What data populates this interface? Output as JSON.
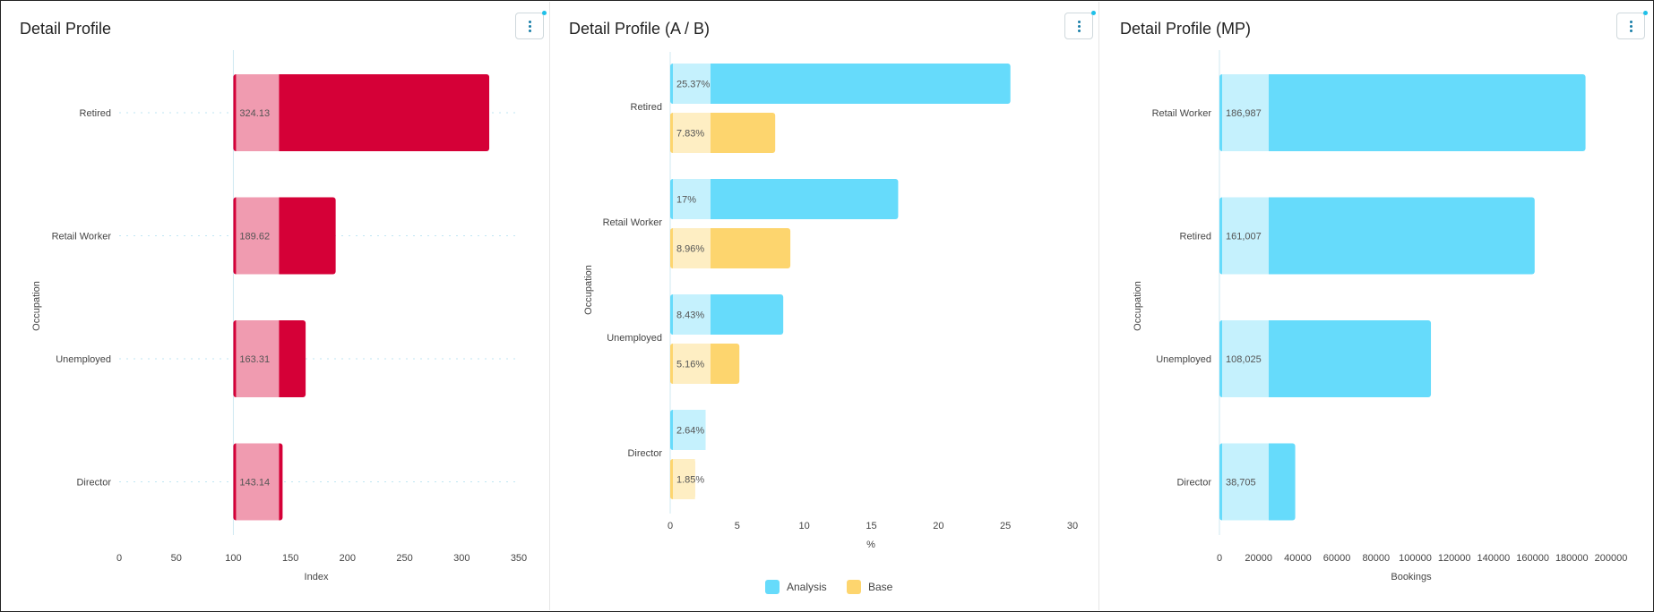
{
  "panels": [
    {
      "title": "Detail Profile"
    },
    {
      "title": "Detail Profile (A / B)"
    },
    {
      "title": "Detail Profile (MP)"
    }
  ],
  "chart_data": [
    {
      "type": "bar",
      "orientation": "horizontal",
      "title": "Detail Profile",
      "ylabel": "Occupation",
      "xlabel": "Index",
      "categories": [
        "Retired",
        "Retail Worker",
        "Unemployed",
        "Director"
      ],
      "values": [
        324.13,
        189.62,
        163.31,
        143.14
      ],
      "value_labels": [
        "324.13",
        "189.62",
        "163.31",
        "143.14"
      ],
      "baseline": 100,
      "xlim": [
        0,
        350
      ],
      "xticks": [
        "0",
        "50",
        "100",
        "150",
        "200",
        "250",
        "300",
        "350"
      ],
      "colors": {
        "bar": "#d50037",
        "bar_light": "#f09bb0"
      }
    },
    {
      "type": "bar",
      "orientation": "horizontal",
      "title": "Detail Profile (A / B)",
      "ylabel": "Occupation",
      "xlabel": "%",
      "categories": [
        "Retired",
        "Retail Worker",
        "Unemployed",
        "Director"
      ],
      "series": [
        {
          "name": "Analysis",
          "values": [
            25.37,
            17,
            8.43,
            2.64
          ],
          "labels": [
            "25.37%",
            "17%",
            "8.43%",
            "2.64%"
          ],
          "color": "#66dbfb",
          "light": "#c5f1fd"
        },
        {
          "name": "Base",
          "values": [
            7.83,
            8.96,
            5.16,
            1.85
          ],
          "labels": [
            "7.83%",
            "8.96%",
            "5.16%",
            "1.85%"
          ],
          "color": "#fdd56e",
          "light": "#feeec3"
        }
      ],
      "xlim": [
        0,
        30
      ],
      "xticks": [
        "0",
        "5",
        "10",
        "15",
        "20",
        "25",
        "30"
      ],
      "legend": "bottom"
    },
    {
      "type": "bar",
      "orientation": "horizontal",
      "title": "Detail Profile (MP)",
      "ylabel": "Occupation",
      "xlabel": "Bookings",
      "categories": [
        "Retail Worker",
        "Retired",
        "Unemployed",
        "Director"
      ],
      "values": [
        186987,
        161007,
        108025,
        38705
      ],
      "value_labels": [
        "186,987",
        "161,007",
        "108,025",
        "38,705"
      ],
      "xlim": [
        0,
        200000
      ],
      "xticks": [
        "0",
        "20000",
        "40000",
        "60000",
        "80000",
        "100000",
        "120000",
        "140000",
        "160000",
        "180000",
        "200000"
      ],
      "colors": {
        "bar": "#66dbfb",
        "bar_light": "#c5f1fd"
      }
    }
  ]
}
